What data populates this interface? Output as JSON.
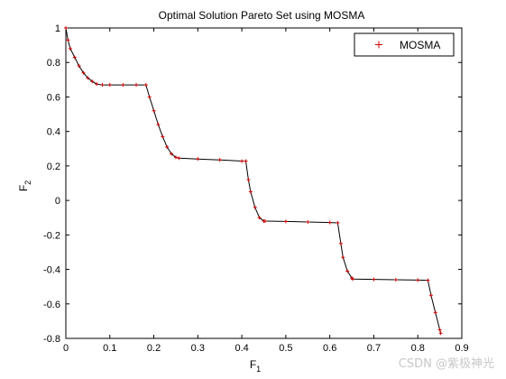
{
  "chart_data": {
    "type": "line",
    "title": "Optimal Solution Pareto Set using MOSMA",
    "xlabel": "F",
    "xlabel_sub": "1",
    "ylabel": "F",
    "ylabel_sub": "2",
    "xlim": [
      0,
      0.9
    ],
    "ylim": [
      -0.8,
      1
    ],
    "xticks": [
      "0",
      "0.1",
      "0.2",
      "0.3",
      "0.4",
      "0.5",
      "0.6",
      "0.7",
      "0.8",
      "0.9"
    ],
    "yticks": [
      "-0.8",
      "-0.6",
      "-0.4",
      "-0.2",
      "0",
      "0.2",
      "0.4",
      "0.6",
      "0.8",
      "1"
    ],
    "grid": false,
    "legend_position": "top-right",
    "series": [
      {
        "name": "MOSMA",
        "marker": "+",
        "marker_color": "#cc0000",
        "line_color": "#000000",
        "x": [
          0.0,
          0.005,
          0.01,
          0.02,
          0.03,
          0.04,
          0.05,
          0.06,
          0.07,
          0.083,
          0.1,
          0.13,
          0.16,
          0.182,
          0.19,
          0.2,
          0.21,
          0.22,
          0.23,
          0.24,
          0.25,
          0.257,
          0.3,
          0.35,
          0.4,
          0.409,
          0.415,
          0.42,
          0.43,
          0.44,
          0.45,
          0.453,
          0.5,
          0.55,
          0.6,
          0.618,
          0.625,
          0.63,
          0.64,
          0.65,
          0.652,
          0.7,
          0.75,
          0.8,
          0.823,
          0.83,
          0.84,
          0.85,
          0.852
        ],
        "y": [
          1.0,
          0.93,
          0.88,
          0.83,
          0.78,
          0.74,
          0.71,
          0.69,
          0.675,
          0.67,
          0.67,
          0.67,
          0.67,
          0.67,
          0.6,
          0.52,
          0.44,
          0.37,
          0.31,
          0.27,
          0.25,
          0.245,
          0.24,
          0.235,
          0.228,
          0.228,
          0.12,
          0.05,
          -0.04,
          -0.1,
          -0.12,
          -0.12,
          -0.122,
          -0.125,
          -0.128,
          -0.13,
          -0.25,
          -0.33,
          -0.41,
          -0.45,
          -0.456,
          -0.458,
          -0.46,
          -0.462,
          -0.463,
          -0.55,
          -0.65,
          -0.75,
          -0.77
        ]
      }
    ]
  },
  "watermark": "CSDN @紫极神光"
}
